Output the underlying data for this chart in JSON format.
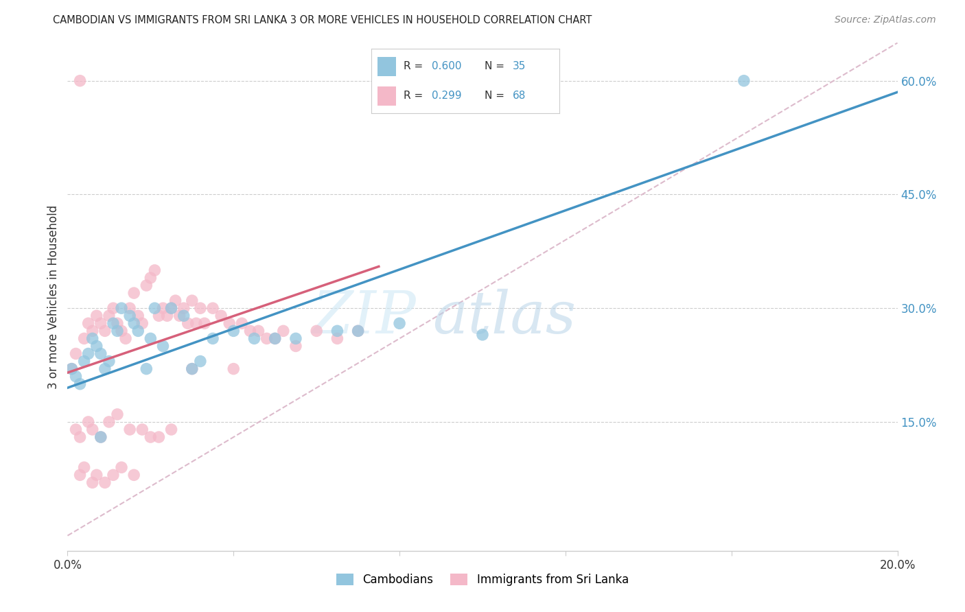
{
  "title": "CAMBODIAN VS IMMIGRANTS FROM SRI LANKA 3 OR MORE VEHICLES IN HOUSEHOLD CORRELATION CHART",
  "source": "Source: ZipAtlas.com",
  "ylabel": "3 or more Vehicles in Household",
  "xlim": [
    0.0,
    0.2
  ],
  "ylim": [
    -0.02,
    0.65
  ],
  "x_tick_positions": [
    0.0,
    0.04,
    0.08,
    0.12,
    0.16,
    0.2
  ],
  "x_tick_labels": [
    "0.0%",
    "",
    "",
    "",
    "",
    "20.0%"
  ],
  "y_tick_positions": [
    0.15,
    0.3,
    0.45,
    0.6
  ],
  "y_tick_labels": [
    "15.0%",
    "30.0%",
    "45.0%",
    "60.0%"
  ],
  "blue_color": "#92c5de",
  "pink_color": "#f4b8c8",
  "blue_line_color": "#4393c3",
  "pink_line_color": "#d6607a",
  "diagonal_color": "#ddbbcc",
  "watermark_zip": "ZIP",
  "watermark_atlas": "atlas",
  "blue_line": {
    "x0": 0.0,
    "y0": 0.195,
    "x1": 0.2,
    "y1": 0.585
  },
  "pink_line": {
    "x0": 0.0,
    "y0": 0.215,
    "x1": 0.075,
    "y1": 0.355
  },
  "diagonal_line": {
    "x0": 0.0,
    "y0": 0.0,
    "x1": 0.2,
    "y1": 0.65
  },
  "cam_x": [
    0.001,
    0.002,
    0.003,
    0.004,
    0.005,
    0.006,
    0.007,
    0.008,
    0.009,
    0.01,
    0.011,
    0.012,
    0.013,
    0.015,
    0.016,
    0.017,
    0.019,
    0.02,
    0.021,
    0.023,
    0.025,
    0.028,
    0.03,
    0.032,
    0.035,
    0.04,
    0.045,
    0.05,
    0.055,
    0.065,
    0.07,
    0.08,
    0.1,
    0.163,
    0.008
  ],
  "cam_y": [
    0.22,
    0.21,
    0.2,
    0.23,
    0.24,
    0.26,
    0.25,
    0.24,
    0.22,
    0.23,
    0.28,
    0.27,
    0.3,
    0.29,
    0.28,
    0.27,
    0.22,
    0.26,
    0.3,
    0.25,
    0.3,
    0.29,
    0.22,
    0.23,
    0.26,
    0.27,
    0.26,
    0.26,
    0.26,
    0.27,
    0.27,
    0.28,
    0.265,
    0.6,
    0.13
  ],
  "sl_x": [
    0.001,
    0.002,
    0.003,
    0.004,
    0.005,
    0.006,
    0.007,
    0.008,
    0.009,
    0.01,
    0.011,
    0.012,
    0.013,
    0.014,
    0.015,
    0.016,
    0.017,
    0.018,
    0.019,
    0.02,
    0.021,
    0.022,
    0.023,
    0.024,
    0.025,
    0.026,
    0.027,
    0.028,
    0.029,
    0.03,
    0.031,
    0.032,
    0.033,
    0.035,
    0.037,
    0.039,
    0.04,
    0.042,
    0.044,
    0.046,
    0.048,
    0.05,
    0.052,
    0.055,
    0.06,
    0.065,
    0.07,
    0.002,
    0.003,
    0.005,
    0.006,
    0.008,
    0.01,
    0.012,
    0.015,
    0.018,
    0.02,
    0.022,
    0.025,
    0.03,
    0.003,
    0.004,
    0.006,
    0.007,
    0.009,
    0.011,
    0.013,
    0.016
  ],
  "sl_y": [
    0.22,
    0.24,
    0.6,
    0.26,
    0.28,
    0.27,
    0.29,
    0.28,
    0.27,
    0.29,
    0.3,
    0.28,
    0.27,
    0.26,
    0.3,
    0.32,
    0.29,
    0.28,
    0.33,
    0.34,
    0.35,
    0.29,
    0.3,
    0.29,
    0.3,
    0.31,
    0.29,
    0.3,
    0.28,
    0.31,
    0.28,
    0.3,
    0.28,
    0.3,
    0.29,
    0.28,
    0.22,
    0.28,
    0.27,
    0.27,
    0.26,
    0.26,
    0.27,
    0.25,
    0.27,
    0.26,
    0.27,
    0.14,
    0.13,
    0.15,
    0.14,
    0.13,
    0.15,
    0.16,
    0.14,
    0.14,
    0.13,
    0.13,
    0.14,
    0.22,
    0.08,
    0.09,
    0.07,
    0.08,
    0.07,
    0.08,
    0.09,
    0.08
  ]
}
